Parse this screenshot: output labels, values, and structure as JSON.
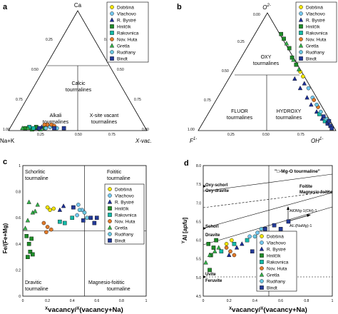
{
  "colors": {
    "Dobsina": "#f2e400",
    "Vlachovo": "#74c8f0",
    "R. Bystre": "#1c2f9a",
    "Hnilcik": "#1e8c28",
    "Rakovnica": "#13b9a6",
    "Nov. Huta": "#e07a2a",
    "Gretla": "#34b24a",
    "Rudnany": "#6ac7e2",
    "Bindt": "#233a98"
  },
  "legend_markers": [
    "circle",
    "circle",
    "triangle",
    "square",
    "square",
    "circle",
    "triangle",
    "circle",
    "square"
  ],
  "legend": [
    "Dobšiná",
    "Vlachovo",
    "R. Bystré",
    "Hnilčík",
    "Rakovnica",
    "Nov. Huta",
    "Gretla",
    "Rudňany",
    "Bindt"
  ],
  "chart_data": [
    {
      "panel": "a",
      "type": "scatter",
      "subtype": "ternary",
      "vertices": [
        "Ca",
        "Na+K",
        "X-vac."
      ],
      "fields": [
        "Calcic\ntourmalines",
        "Alkali\ntourmalines",
        "X-site vacant\ntourmalines"
      ],
      "ticks": [
        "0.00",
        "0.25",
        "0.50",
        "0.75",
        "1.00"
      ],
      "series": [
        {
          "name": "Dobšiná",
          "points": [
            {
              "x": 0.3,
              "y": 0.03
            },
            {
              "x": 0.32,
              "y": 0.04
            },
            {
              "x": 0.27,
              "y": 0.04
            }
          ]
        },
        {
          "name": "Vlachovo",
          "points": [
            {
              "x": 0.22,
              "y": 0.02
            },
            {
              "x": 0.3,
              "y": 0.03
            }
          ]
        },
        {
          "name": "R. Bystré",
          "points": [
            {
              "x": 0.2,
              "y": 0.02
            },
            {
              "x": 0.24,
              "y": 0.03
            }
          ]
        },
        {
          "name": "Hnilčík",
          "points": [
            {
              "x": 0.12,
              "y": 0.02
            },
            {
              "x": 0.2,
              "y": 0.03
            },
            {
              "x": 0.26,
              "y": 0.02
            },
            {
              "x": 0.17,
              "y": 0.01
            }
          ]
        },
        {
          "name": "Rakovnica",
          "points": [
            {
              "x": 0.18,
              "y": 0.02
            },
            {
              "x": 0.15,
              "y": 0.03
            }
          ]
        },
        {
          "name": "Nov. Huta",
          "points": [
            {
              "x": 0.31,
              "y": 0.05
            },
            {
              "x": 0.33,
              "y": 0.04
            },
            {
              "x": 0.28,
              "y": 0.05
            },
            {
              "x": 0.26,
              "y": 0.05
            }
          ]
        },
        {
          "name": "Gretla",
          "points": [
            {
              "x": 0.1,
              "y": 0.02
            },
            {
              "x": 0.14,
              "y": 0.02
            },
            {
              "x": 0.23,
              "y": 0.01
            }
          ]
        },
        {
          "name": "Rudňany",
          "points": [
            {
              "x": 0.27,
              "y": 0.02
            },
            {
              "x": 0.35,
              "y": 0.02
            }
          ]
        },
        {
          "name": "Bindt",
          "points": [
            {
              "x": 0.22,
              "y": 0.02
            },
            {
              "x": 0.33,
              "y": 0.02
            },
            {
              "x": 0.4,
              "y": 0.02
            }
          ]
        }
      ]
    },
    {
      "panel": "b",
      "type": "scatter",
      "subtype": "ternary",
      "vertices": [
        "O2-",
        "F1-",
        "OH1-"
      ],
      "fields": [
        "OXY\ntourmalines",
        "FLUOR\ntourmalines",
        "HYDROXY\ntourmalines"
      ],
      "ticks": [
        "0.00",
        "0.25",
        "0.50",
        "0.75",
        "1.00"
      ],
      "series": [
        {
          "name": "Dobšiná",
          "points": [
            {
              "x": 0.74,
              "y": 0.5
            },
            {
              "x": 0.76,
              "y": 0.46
            }
          ]
        },
        {
          "name": "Vlachovo",
          "points": [
            {
              "x": 0.83,
              "y": 0.28
            },
            {
              "x": 0.8,
              "y": 0.36
            }
          ]
        },
        {
          "name": "R. Bystré",
          "points": [
            {
              "x": 0.7,
              "y": 0.44
            },
            {
              "x": 0.74,
              "y": 0.36
            },
            {
              "x": 0.79,
              "y": 0.28
            },
            {
              "x": 0.82,
              "y": 0.22
            },
            {
              "x": 0.86,
              "y": 0.16
            },
            {
              "x": 0.9,
              "y": 0.1
            },
            {
              "x": 0.77,
              "y": 0.4
            }
          ]
        },
        {
          "name": "Hnilčík",
          "points": [
            {
              "x": 0.68,
              "y": 0.62
            },
            {
              "x": 0.66,
              "y": 0.7
            },
            {
              "x": 0.62,
              "y": 0.78
            },
            {
              "x": 0.71,
              "y": 0.56
            },
            {
              "x": 0.6,
              "y": 0.82
            }
          ]
        },
        {
          "name": "Rakovnica",
          "points": [
            {
              "x": 0.88,
              "y": 0.14
            },
            {
              "x": 0.92,
              "y": 0.08
            }
          ]
        },
        {
          "name": "Nov. Huta",
          "points": [
            {
              "x": 0.84,
              "y": 0.26
            },
            {
              "x": 0.87,
              "y": 0.2
            }
          ]
        },
        {
          "name": "Gretla",
          "points": [
            {
              "x": 0.64,
              "y": 0.74
            },
            {
              "x": 0.69,
              "y": 0.6
            },
            {
              "x": 0.73,
              "y": 0.52
            }
          ]
        },
        {
          "name": "Rudňany",
          "points": [
            {
              "x": 0.86,
              "y": 0.22
            },
            {
              "x": 0.89,
              "y": 0.16
            },
            {
              "x": 0.93,
              "y": 0.1
            }
          ]
        },
        {
          "name": "Bindt",
          "points": [
            {
              "x": 0.91,
              "y": 0.12
            },
            {
              "x": 0.94,
              "y": 0.06
            },
            {
              "x": 0.96,
              "y": 0.04
            },
            {
              "x": 0.97,
              "y": 0.02
            },
            {
              "x": 0.95,
              "y": 0.08
            }
          ]
        }
      ]
    },
    {
      "panel": "c",
      "type": "scatter",
      "xlabel": "Xvacancy/(Xvacancy+Na)",
      "ylabel": "Fe/(Fe+Mg)",
      "xlim": [
        0,
        1
      ],
      "ylim": [
        0,
        1
      ],
      "xticks": [
        "0",
        "0.2",
        "0.4",
        "0.6",
        "0.8",
        "1"
      ],
      "yticks": [
        "0",
        "0.2",
        "0.4",
        "0.6",
        "0.8",
        "1"
      ],
      "fields": [
        "Schorlitic\ntourmaline",
        "Foititic\ntourmaline",
        "Dravitic\ntourmaline",
        "Magnesio-foititic\ntourmaline"
      ],
      "series": [
        {
          "name": "Dobšiná",
          "points": [
            {
              "x": 0.2,
              "y": 0.68
            },
            {
              "x": 0.22,
              "y": 0.66
            },
            {
              "x": 0.25,
              "y": 0.67
            }
          ]
        },
        {
          "name": "Vlachovo",
          "points": [
            {
              "x": 0.45,
              "y": 0.7
            },
            {
              "x": 0.48,
              "y": 0.66
            },
            {
              "x": 0.44,
              "y": 0.62
            }
          ]
        },
        {
          "name": "R. Bystré",
          "points": [
            {
              "x": 0.3,
              "y": 0.66
            },
            {
              "x": 0.33,
              "y": 0.69
            }
          ]
        },
        {
          "name": "Hnilčík",
          "points": [
            {
              "x": 0.03,
              "y": 0.46
            },
            {
              "x": 0.05,
              "y": 0.4
            },
            {
              "x": 0.06,
              "y": 0.34
            },
            {
              "x": 0.08,
              "y": 0.32
            },
            {
              "x": 0.04,
              "y": 0.3
            },
            {
              "x": 0.07,
              "y": 0.44
            }
          ]
        },
        {
          "name": "Rakovnica",
          "points": [
            {
              "x": 0.3,
              "y": 0.57
            },
            {
              "x": 0.34,
              "y": 0.56
            },
            {
              "x": 0.4,
              "y": 0.6
            }
          ]
        },
        {
          "name": "Nov. Huta",
          "points": [
            {
              "x": 0.17,
              "y": 0.56
            },
            {
              "x": 0.2,
              "y": 0.53
            },
            {
              "x": 0.23,
              "y": 0.51
            },
            {
              "x": 0.19,
              "y": 0.49
            }
          ]
        },
        {
          "name": "Gretla",
          "points": [
            {
              "x": 0.05,
              "y": 0.72
            },
            {
              "x": 0.08,
              "y": 0.64
            },
            {
              "x": 0.04,
              "y": 0.58
            },
            {
              "x": 0.02,
              "y": 0.52
            },
            {
              "x": 0.12,
              "y": 0.7
            },
            {
              "x": 0.1,
              "y": 0.65
            }
          ]
        },
        {
          "name": "Rudňany",
          "points": [
            {
              "x": 0.46,
              "y": 0.66
            },
            {
              "x": 0.5,
              "y": 0.64
            },
            {
              "x": 0.52,
              "y": 0.6
            }
          ]
        },
        {
          "name": "Bindt",
          "points": [
            {
              "x": 0.41,
              "y": 0.68
            },
            {
              "x": 0.49,
              "y": 0.58
            },
            {
              "x": 0.55,
              "y": 0.6
            },
            {
              "x": 0.58,
              "y": 0.56
            },
            {
              "x": 0.6,
              "y": 0.6
            }
          ]
        }
      ]
    },
    {
      "panel": "d",
      "type": "scatter",
      "xlabel": "Xvacancy/(Xvacancy+Na)",
      "ylabel": "YAl [apfu]",
      "xlim": [
        0,
        1
      ],
      "ylim": [
        4.5,
        8.0
      ],
      "xticks": [
        "0",
        "0.2",
        "0.4",
        "0.6",
        "0.8",
        "1"
      ],
      "yticks": [
        "4.5",
        "5.0",
        "5.5",
        "6.0",
        "6.5",
        "7.0",
        "7.5",
        "8.0"
      ],
      "annotations": [
        "\"□-Mg-O tourmaline\"",
        "Oxy-schorl\nOxy-dravite",
        "Foitite\nMagnesio-foitite",
        "Schorl\nDravite",
        "Uvite\nFeruvite",
        "AlOMg-1(OH)-1",
        "Al□(NaMg)-1"
      ],
      "series": [
        {
          "name": "Dobšiná",
          "points": [
            {
              "x": 0.18,
              "y": 5.9
            },
            {
              "x": 0.22,
              "y": 6.0
            }
          ]
        },
        {
          "name": "Vlachovo",
          "points": [
            {
              "x": 0.36,
              "y": 6.1
            },
            {
              "x": 0.42,
              "y": 6.2
            }
          ]
        },
        {
          "name": "R. Bystré",
          "points": [
            {
              "x": 0.2,
              "y": 5.6
            },
            {
              "x": 0.26,
              "y": 5.8
            },
            {
              "x": 0.3,
              "y": 5.9
            }
          ]
        },
        {
          "name": "Hnilčík",
          "points": [
            {
              "x": 0.04,
              "y": 5.9
            },
            {
              "x": 0.08,
              "y": 5.8
            },
            {
              "x": 0.1,
              "y": 6.0
            },
            {
              "x": 0.06,
              "y": 5.6
            },
            {
              "x": 0.05,
              "y": 5.2
            }
          ]
        },
        {
          "name": "Rakovnica",
          "points": [
            {
              "x": 0.14,
              "y": 5.7
            },
            {
              "x": 0.24,
              "y": 5.9
            },
            {
              "x": 0.34,
              "y": 6.0
            }
          ]
        },
        {
          "name": "Nov. Huta",
          "points": [
            {
              "x": 0.18,
              "y": 5.8
            },
            {
              "x": 0.21,
              "y": 5.7
            },
            {
              "x": 0.24,
              "y": 5.6
            }
          ]
        },
        {
          "name": "Gretla",
          "points": [
            {
              "x": 0.02,
              "y": 5.4
            },
            {
              "x": 0.05,
              "y": 5.6
            },
            {
              "x": 0.09,
              "y": 5.7
            },
            {
              "x": 0.12,
              "y": 5.8
            }
          ]
        },
        {
          "name": "Rudňany",
          "points": [
            {
              "x": 0.4,
              "y": 6.1
            },
            {
              "x": 0.45,
              "y": 6.3
            }
          ]
        },
        {
          "name": "Bindt",
          "points": [
            {
              "x": 0.38,
              "y": 5.7
            },
            {
              "x": 0.48,
              "y": 6.3
            },
            {
              "x": 0.55,
              "y": 6.4
            },
            {
              "x": 0.6,
              "y": 6.3
            },
            {
              "x": 0.66,
              "y": 6.5
            }
          ]
        }
      ]
    }
  ]
}
